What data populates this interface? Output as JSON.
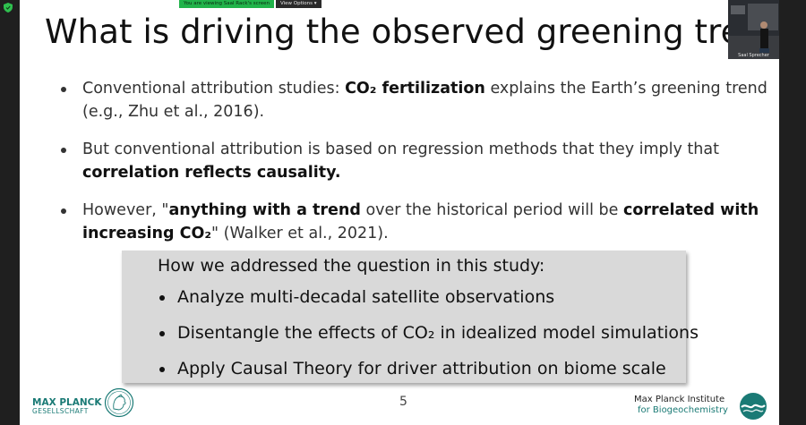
{
  "screen_share": {
    "banner_text": "You are viewing Saal Rack's screen",
    "view_options_label": "View Options",
    "view_options_icon": "chevron-down-icon"
  },
  "participant": {
    "name": "Saal Sprecher"
  },
  "slide": {
    "title": "What is driving the observed greening trend?",
    "bullets": [
      {
        "t1": "Conventional attribution studies: ",
        "b1": "CO₂ fertilization",
        "t2": " explains the Earth’s greening trend (e.g., Zhu et al., 2016)."
      },
      {
        "t1": "But conventional attribution is based on regression methods that they imply that ",
        "b1": "correlation reflects causality.",
        "t2": ""
      },
      {
        "t1": "However, \"",
        "b1": "anything with a trend",
        "t2": " over the historical period will be ",
        "b2": "correlated with increasing CO₂",
        "t3": "\" (Walker et al., 2021)."
      }
    ],
    "box": {
      "heading": "How we addressed the question in this study:",
      "items": [
        "Analyze multi-decadal satellite observations",
        "Disentangle the effects of CO₂ in idealized model simulations",
        "Apply Causal Theory for driver attribution on biome scale"
      ]
    },
    "page_number": "5",
    "footer": {
      "mpg_name": "MAX PLANCK",
      "mpg_sub": "GESELLSCHAFT",
      "institute_line1": "Max Planck Institute",
      "institute_line2": "for Biogeochemistry"
    }
  },
  "colors": {
    "accent": "#1a7a75",
    "banner_green": "#21b34a",
    "box_bg": "#d9d9d9"
  }
}
